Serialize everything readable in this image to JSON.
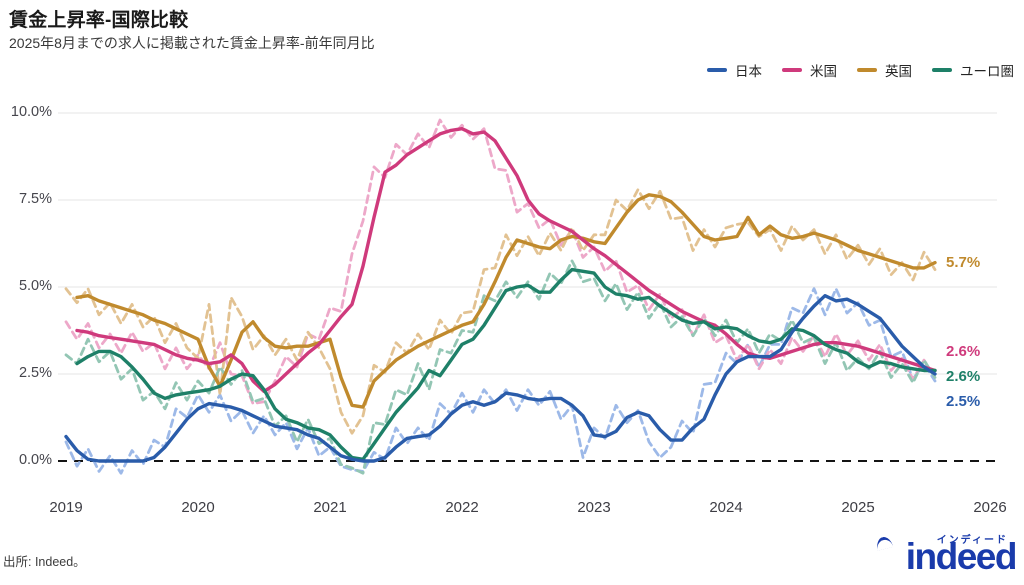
{
  "header": {
    "title": "賃金上昇率-国際比較",
    "subtitle": "2025年8月までの求人に掲載された賃金上昇率-前年同月比"
  },
  "legend": {
    "items": [
      {
        "label": "日本"
      },
      {
        "label": "米国"
      },
      {
        "label": "英国"
      },
      {
        "label": "ユーロ圏"
      }
    ]
  },
  "footer": {
    "source": "出所: Indeed。",
    "logo_text": "indeed",
    "logo_ruby": "インディード",
    "logo_color": "#1a3bab"
  },
  "chart_data": {
    "type": "line",
    "title": "賃金上昇率-国際比較",
    "subtitle": "2025年8月までの求人に掲載された賃金上昇率-前年同月比",
    "x_unit": "month",
    "x_start": "2019-01",
    "x_end": "2025-08",
    "x_tick_labels": [
      "2019",
      "2020",
      "2021",
      "2022",
      "2023",
      "2024",
      "2025",
      "2026"
    ],
    "x_tick_years": [
      2019,
      2020,
      2021,
      2022,
      2023,
      2024,
      2025,
      2026
    ],
    "y_ticks": [
      0.0,
      2.5,
      5.0,
      7.5,
      10.0
    ],
    "y_tick_labels": [
      "0.0%",
      "2.5%",
      "5.0%",
      "7.5%",
      "10.0%"
    ],
    "ylim": [
      -0.6,
      10.4
    ],
    "grid": "horizontal",
    "zero_line": "dashed-black",
    "legend_position": "top-right",
    "series": [
      {
        "key": "japan",
        "name": "日本",
        "color": "#2a5caa",
        "light_color": "#9db9e8",
        "end_label": "2.5%",
        "values": [
          0.7,
          0.3,
          0.05,
          0,
          0,
          0,
          0,
          0,
          0.1,
          0.4,
          0.8,
          1.2,
          1.5,
          1.65,
          1.6,
          1.55,
          1.45,
          1.3,
          1.15,
          1.0,
          0.95,
          0.9,
          0.75,
          0.65,
          0.4,
          0.15,
          0.05,
          0,
          0,
          0.1,
          0.4,
          0.65,
          0.7,
          0.75,
          1.0,
          1.35,
          1.6,
          1.7,
          1.6,
          1.7,
          1.95,
          1.9,
          1.8,
          1.75,
          1.8,
          1.8,
          1.6,
          1.3,
          0.75,
          0.7,
          0.85,
          1.25,
          1.4,
          1.3,
          0.9,
          0.6,
          0.6,
          0.95,
          1.2,
          1.9,
          2.5,
          2.85,
          3.0,
          3.0,
          3.0,
          3.2,
          3.7,
          4.1,
          4.45,
          4.75,
          4.6,
          4.65,
          4.5,
          4.3,
          4.1,
          3.7,
          3.3,
          3.0,
          2.7,
          2.5
        ]
      },
      {
        "key": "us",
        "name": "米国",
        "color": "#cf3a7c",
        "light_color": "#eda8c9",
        "end_label": "2.6%",
        "values": [
          null,
          3.75,
          3.7,
          3.6,
          3.55,
          3.5,
          3.45,
          3.4,
          3.35,
          3.2,
          3.05,
          2.95,
          2.9,
          2.8,
          2.85,
          3.05,
          2.8,
          2.3,
          2.0,
          2.2,
          2.5,
          2.8,
          3.1,
          3.35,
          3.75,
          4.15,
          4.5,
          5.6,
          7.0,
          8.3,
          8.5,
          8.8,
          9.0,
          9.2,
          9.4,
          9.5,
          9.55,
          9.4,
          9.45,
          9.2,
          8.7,
          8.2,
          7.5,
          7.1,
          6.9,
          6.75,
          6.6,
          6.35,
          6.1,
          5.9,
          5.65,
          5.4,
          5.15,
          4.9,
          4.7,
          4.5,
          4.3,
          4.15,
          4.0,
          3.9,
          3.65,
          3.35,
          3.1,
          3.0,
          2.95,
          3.05,
          3.15,
          3.25,
          3.35,
          3.4,
          3.4,
          3.35,
          3.3,
          3.2,
          3.1,
          3.0,
          2.9,
          2.8,
          2.7,
          2.6
        ]
      },
      {
        "key": "uk",
        "name": "英国",
        "color": "#c08a2d",
        "light_color": "#e2c292",
        "end_label": "5.7%",
        "values": [
          null,
          4.7,
          4.75,
          4.6,
          4.5,
          4.4,
          4.3,
          4.2,
          4.05,
          3.95,
          3.8,
          3.65,
          3.5,
          2.7,
          2.15,
          2.9,
          3.7,
          4.0,
          3.55,
          3.3,
          3.25,
          3.3,
          3.3,
          3.4,
          3.5,
          2.4,
          1.6,
          1.55,
          2.3,
          2.6,
          2.9,
          3.1,
          3.3,
          3.45,
          3.6,
          3.75,
          3.9,
          4.0,
          4.5,
          5.15,
          5.85,
          6.35,
          6.25,
          6.15,
          6.1,
          6.35,
          6.45,
          6.4,
          6.3,
          6.25,
          6.7,
          7.15,
          7.5,
          7.65,
          7.6,
          7.45,
          7.15,
          6.8,
          6.45,
          6.35,
          6.4,
          6.45,
          7.0,
          6.5,
          6.75,
          6.5,
          6.4,
          6.45,
          6.55,
          6.45,
          6.35,
          6.2,
          6.05,
          5.95,
          5.85,
          5.75,
          5.65,
          5.55,
          5.55,
          5.7
        ]
      },
      {
        "key": "euro",
        "name": "ユーロ圏",
        "color": "#1e8068",
        "light_color": "#93c6b4",
        "end_label": "2.6%",
        "values": [
          null,
          2.8,
          3.0,
          3.15,
          3.15,
          3.0,
          2.7,
          2.35,
          1.95,
          1.8,
          1.9,
          1.95,
          2.0,
          2.05,
          2.15,
          2.35,
          2.5,
          2.45,
          2.05,
          1.5,
          1.2,
          1.1,
          0.95,
          0.9,
          0.75,
          0.4,
          0.1,
          0.05,
          0.5,
          0.95,
          1.4,
          1.75,
          2.1,
          2.6,
          2.45,
          2.9,
          3.35,
          3.5,
          3.9,
          4.4,
          4.9,
          5.0,
          5.05,
          4.85,
          4.85,
          5.2,
          5.5,
          5.45,
          5.4,
          5.0,
          4.8,
          4.75,
          4.65,
          4.7,
          4.45,
          4.25,
          4.05,
          3.95,
          4.0,
          3.8,
          3.85,
          3.8,
          3.6,
          3.45,
          3.4,
          3.5,
          3.8,
          3.75,
          3.6,
          3.35,
          3.2,
          3.1,
          2.85,
          2.7,
          2.85,
          2.8,
          2.7,
          2.65,
          2.6,
          2.6
        ]
      }
    ],
    "dashed_overlay": {
      "description": "Light dashed lines are the unsmoothed monthly series tracking each solid line",
      "lead_months": 1,
      "wiggle": [
        0.25,
        -0.2,
        0.35,
        -0.3,
        0.15,
        -0.35,
        0.3,
        -0.2,
        0.2,
        -0.4,
        0.3,
        -0.25
      ],
      "overrides": {
        "japan": {
          "26": -0.25,
          "27": -0.3,
          "47": 0.1,
          "54": 0.1
        },
        "us": {
          "18": 1.7,
          "27": 6.9
        },
        "uk": {
          "13": 4.5,
          "14": 1.9,
          "15": 4.7,
          "25": 1.4,
          "26": 0.8,
          "27": 1.3
        },
        "euro": {
          "26": -0.2,
          "27": -0.35
        }
      }
    }
  }
}
